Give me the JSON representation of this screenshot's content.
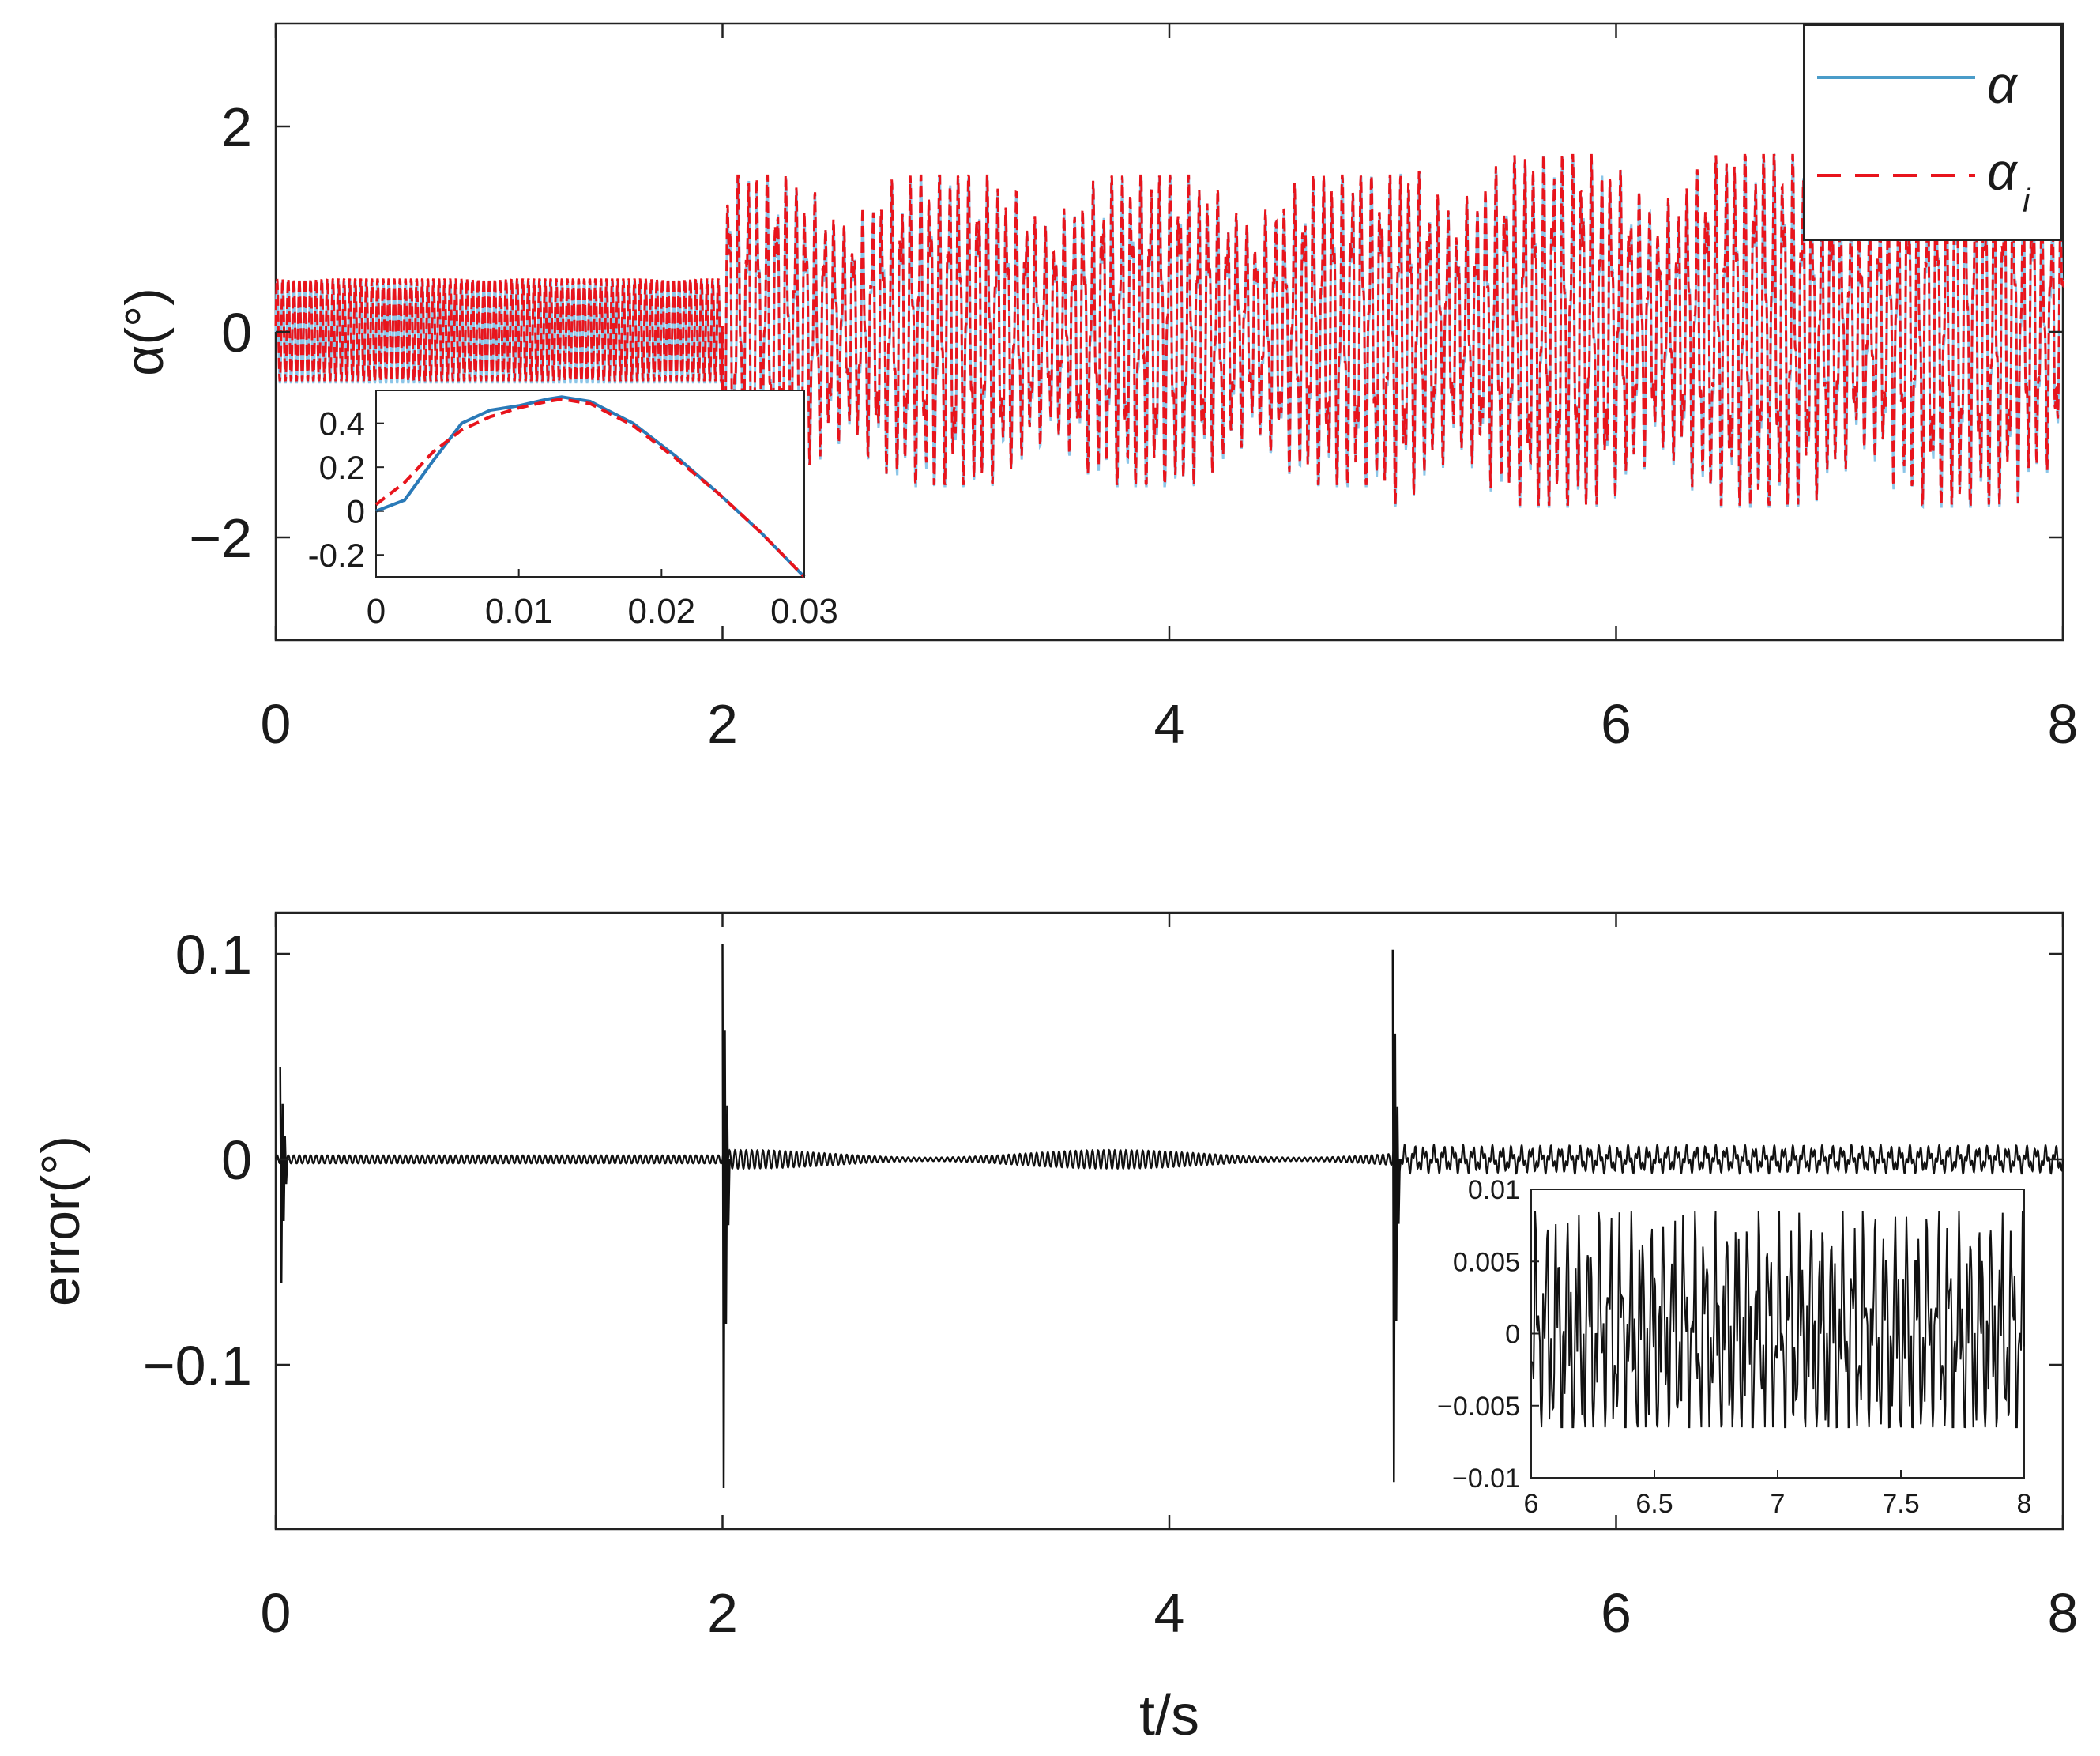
{
  "colors": {
    "alpha": "#4a9cc9",
    "alpha_light": "#8cc6e8",
    "alpha_i": "#e8141c",
    "error": "#111111",
    "axes": "#222222"
  },
  "chart_data": [
    {
      "id": "top",
      "type": "line",
      "title": "",
      "xlabel": "",
      "ylabel": "α(°)",
      "xlim": [
        0,
        8
      ],
      "ylim": [
        -3,
        3
      ],
      "xticks": [
        "0",
        "2",
        "4",
        "6",
        "8"
      ],
      "yticks": [
        "−2",
        "0",
        "2"
      ],
      "legend": {
        "position": "top-right",
        "entries": [
          {
            "label": "α",
            "style": "solid"
          },
          {
            "label": "α",
            "subscript": "i",
            "style": "dashed"
          }
        ]
      },
      "series": [
        {
          "name": "α",
          "style": "solid",
          "segments": [
            {
              "t0": 0,
              "t1": 2,
              "envelope": [
                0.5
              ],
              "cycles": 80
            },
            {
              "t0": 2,
              "t1": 5,
              "envelope": [
                1.5,
                1.6
              ],
              "cycles": 70
            },
            {
              "t0": 5,
              "t1": 8,
              "envelope": [
                1.7
              ],
              "cycles": 66
            }
          ]
        },
        {
          "name": "α_i",
          "style": "dashed",
          "segments": [
            {
              "t0": 0,
              "t1": 2,
              "envelope": [
                0.5
              ],
              "cycles": 80
            },
            {
              "t0": 2,
              "t1": 5,
              "envelope": [
                1.5,
                1.6
              ],
              "cycles": 70
            },
            {
              "t0": 5,
              "t1": 8,
              "envelope": [
                1.7
              ],
              "cycles": 66
            }
          ]
        }
      ],
      "inset": {
        "xlim": [
          0,
          0.03
        ],
        "ylim": [
          -0.3,
          0.55
        ],
        "xticks": [
          "0",
          "0.01",
          "0.02",
          "0.03"
        ],
        "yticks": [
          "-0.2",
          "0",
          "0.2",
          "0.4"
        ],
        "series": [
          {
            "name": "α",
            "x": [
              0,
              0.002,
              0.004,
              0.006,
              0.008,
              0.01,
              0.012,
              0.013,
              0.015,
              0.018,
              0.021,
              0.024,
              0.027,
              0.03
            ],
            "y": [
              0,
              0.05,
              0.23,
              0.4,
              0.46,
              0.48,
              0.51,
              0.52,
              0.5,
              0.4,
              0.25,
              0.08,
              -0.1,
              -0.3
            ]
          },
          {
            "name": "α_i",
            "x": [
              0,
              0.002,
              0.004,
              0.006,
              0.008,
              0.01,
              0.012,
              0.013,
              0.015,
              0.018,
              0.021,
              0.024,
              0.027,
              0.03
            ],
            "y": [
              0.03,
              0.13,
              0.27,
              0.37,
              0.43,
              0.47,
              0.5,
              0.51,
              0.49,
              0.39,
              0.24,
              0.08,
              -0.1,
              -0.3
            ]
          }
        ]
      }
    },
    {
      "id": "bottom",
      "type": "line",
      "title": "",
      "xlabel": "t/s",
      "ylabel": "error(°)",
      "xlim": [
        0,
        8
      ],
      "ylim": [
        -0.18,
        0.12
      ],
      "xticks": [
        "0",
        "2",
        "4",
        "6",
        "8"
      ],
      "yticks": [
        "−0.1",
        "0",
        "0.1"
      ],
      "series": [
        {
          "name": "error",
          "spikes": [
            {
              "t": 0.02,
              "min": -0.06,
              "max": 0.045
            },
            {
              "t": 2.0,
              "min": -0.16,
              "max": 0.105
            },
            {
              "t": 5.0,
              "min": -0.157,
              "max": 0.102
            }
          ],
          "segments": [
            {
              "t0": 0,
              "t1": 2,
              "amplitude": 0.002
            },
            {
              "t0": 2,
              "t1": 5,
              "amplitude": 0.0045
            },
            {
              "t0": 5,
              "t1": 8,
              "amplitude": 0.007
            }
          ]
        }
      ],
      "inset": {
        "xlim": [
          6,
          8
        ],
        "ylim": [
          -0.01,
          0.01
        ],
        "xticks": [
          "6",
          "6.5",
          "7",
          "7.5",
          "8"
        ],
        "yticks": [
          "0.01",
          "0.005",
          "0",
          "−0.005",
          "−0.01"
        ],
        "series": [
          {
            "name": "error",
            "min": -0.0065,
            "max": 0.0085
          }
        ]
      }
    }
  ]
}
